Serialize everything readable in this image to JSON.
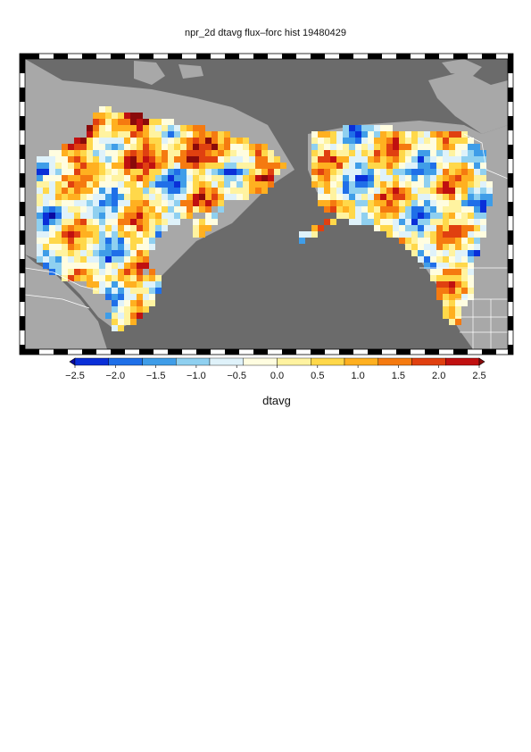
{
  "title": "npr_2d dtavg flux–forc hist 19480429",
  "variable_label": "dtavg",
  "colorbar": {
    "ticks": [
      "−2.5",
      "−2.0",
      "−1.5",
      "−1.0",
      "−0.5",
      "0.0",
      "0.5",
      "1.0",
      "1.5",
      "2.0",
      "2.5"
    ],
    "colors": [
      "#0a0aa0",
      "#0a2fd8",
      "#1f6fe8",
      "#3f9de8",
      "#8fd0f0",
      "#dff2fa",
      "#fffde0",
      "#fff3a0",
      "#ffd84a",
      "#ffb020",
      "#f57a10",
      "#e04010",
      "#c01010",
      "#8a0a0a"
    ],
    "extend": "both"
  },
  "map": {
    "ocean_color": "#6b6b6b",
    "land_color": "#a8a8a8",
    "frame": "black-white-checker"
  }
}
